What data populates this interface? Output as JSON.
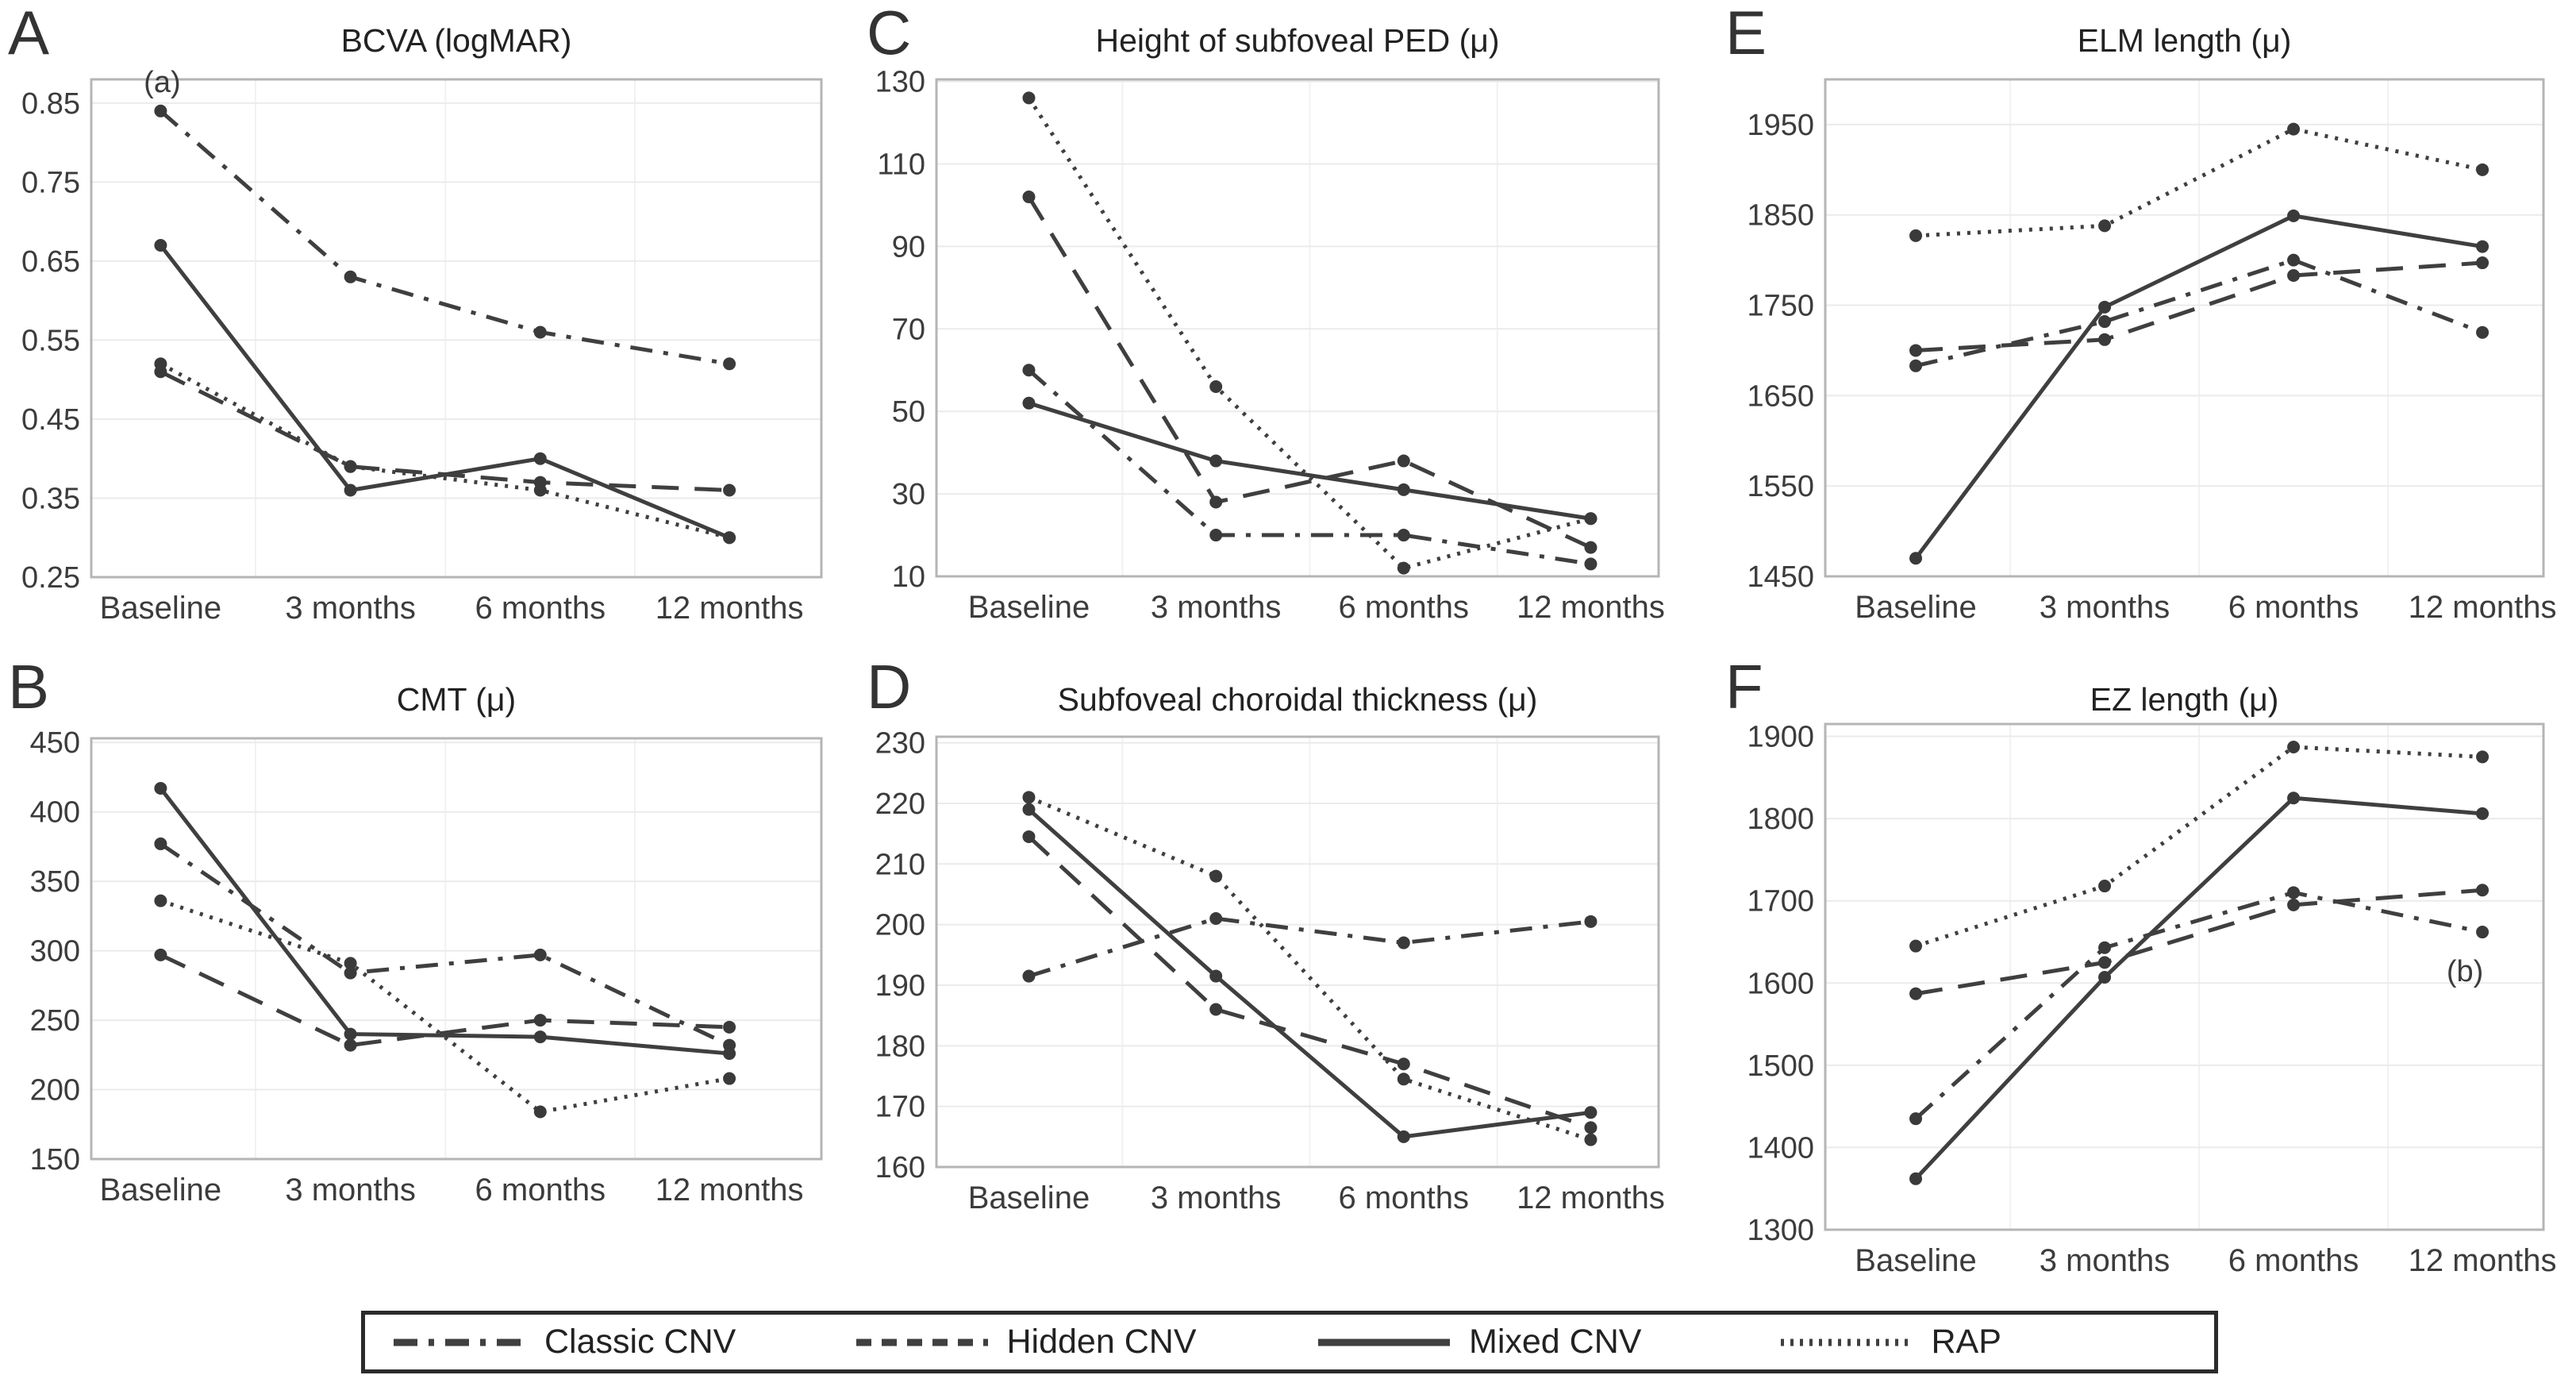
{
  "page": {
    "background": "#ffffff"
  },
  "colors": {
    "series_line": "#3f3f3f",
    "marker": "#3a3a3a",
    "grid": "#ebebeb",
    "plot_border": "#b5b5b5",
    "text": "#2e2e2e"
  },
  "legend": {
    "items": [
      {
        "label": "Classic CNV",
        "style": "dashdot"
      },
      {
        "label": "Hidden CNV",
        "style": "dashed"
      },
      {
        "label": "Mixed CNV",
        "style": "solid"
      },
      {
        "label": "RAP",
        "style": "dotted"
      }
    ]
  },
  "chart_data": [
    {
      "panel": "A",
      "type": "line",
      "title": "BCVA (logMAR)",
      "categories": [
        "Baseline",
        "3 months",
        "6 months",
        "12 months"
      ],
      "ylim": [
        0.25,
        0.88
      ],
      "yticks": [
        0.85,
        0.75,
        0.65,
        0.55,
        0.45,
        0.35,
        0.25
      ],
      "ytick_decimals": 2,
      "grid": true,
      "series": [
        {
          "name": "Classic CNV",
          "style": "dashdot",
          "values": [
            0.84,
            0.63,
            0.56,
            0.52
          ]
        },
        {
          "name": "Hidden CNV",
          "style": "dashed",
          "values": [
            0.51,
            0.39,
            0.37,
            0.36
          ]
        },
        {
          "name": "Mixed CNV",
          "style": "solid",
          "values": [
            0.67,
            0.36,
            0.4,
            0.3
          ]
        },
        {
          "name": "RAP",
          "style": "dotted",
          "values": [
            0.52,
            0.39,
            0.36,
            0.3
          ]
        }
      ],
      "annotations": [
        {
          "text": "(a)",
          "series": 0,
          "point": 0,
          "position": "above"
        }
      ]
    },
    {
      "panel": "B",
      "type": "line",
      "title": "CMT (μ)",
      "categories": [
        "Baseline",
        "3 months",
        "6 months",
        "12 months"
      ],
      "ylim": [
        150,
        453
      ],
      "yticks": [
        450,
        400,
        350,
        300,
        250,
        200,
        150
      ],
      "ytick_decimals": 0,
      "grid": true,
      "series": [
        {
          "name": "Classic CNV",
          "style": "dashdot",
          "values": [
            377,
            284,
            297,
            232
          ]
        },
        {
          "name": "Hidden CNV",
          "style": "dashed",
          "values": [
            297,
            232,
            250,
            245
          ]
        },
        {
          "name": "Mixed CNV",
          "style": "solid",
          "values": [
            417,
            240,
            238,
            226
          ]
        },
        {
          "name": "RAP",
          "style": "dotted",
          "values": [
            336,
            291,
            184,
            208
          ]
        }
      ],
      "annotations": []
    },
    {
      "panel": "C",
      "type": "line",
      "title": "Height of subfoveal PED (μ)",
      "categories": [
        "Baseline",
        "3 months",
        "6 months",
        "12 months"
      ],
      "ylim": [
        10,
        130.5
      ],
      "yticks": [
        130,
        110,
        90,
        70,
        50,
        30,
        10
      ],
      "ytick_decimals": 0,
      "grid": true,
      "series": [
        {
          "name": "Classic CNV",
          "style": "dashdot",
          "values": [
            60,
            20,
            20,
            13
          ]
        },
        {
          "name": "Hidden CNV",
          "style": "dashed",
          "values": [
            102,
            28,
            38,
            17
          ]
        },
        {
          "name": "Mixed CNV",
          "style": "solid",
          "values": [
            52,
            38,
            31,
            24
          ]
        },
        {
          "name": "RAP",
          "style": "dotted",
          "values": [
            126,
            56,
            12,
            24
          ]
        }
      ],
      "annotations": []
    },
    {
      "panel": "D",
      "type": "line",
      "title": "Subfoveal choroidal thickness (μ)",
      "categories": [
        "Baseline",
        "3 months",
        "6 months",
        "12 months"
      ],
      "ylim": [
        160,
        231
      ],
      "yticks": [
        230,
        220,
        210,
        200,
        190,
        180,
        170,
        160
      ],
      "ytick_decimals": 0,
      "grid": true,
      "series": [
        {
          "name": "Classic CNV",
          "style": "dashdot",
          "values": [
            191.5,
            201,
            197,
            200.5
          ]
        },
        {
          "name": "Hidden CNV",
          "style": "dashed",
          "values": [
            214.5,
            186,
            177,
            166.5
          ]
        },
        {
          "name": "Mixed CNV",
          "style": "solid",
          "values": [
            219,
            191.5,
            165,
            169
          ]
        },
        {
          "name": "RAP",
          "style": "dotted",
          "values": [
            221,
            208,
            174.5,
            164.5
          ]
        }
      ],
      "annotations": []
    },
    {
      "panel": "E",
      "type": "line",
      "title": "ELM length (μ)",
      "categories": [
        "Baseline",
        "3 months",
        "6 months",
        "12 months"
      ],
      "ylim": [
        1450,
        2000
      ],
      "yticks": [
        1950,
        1850,
        1750,
        1650,
        1550,
        1450
      ],
      "ytick_decimals": 0,
      "grid": true,
      "series": [
        {
          "name": "Classic CNV",
          "style": "dashdot",
          "values": [
            1683,
            1732,
            1800,
            1720
          ]
        },
        {
          "name": "Hidden CNV",
          "style": "dashed",
          "values": [
            1700,
            1712,
            1783,
            1797
          ]
        },
        {
          "name": "Mixed CNV",
          "style": "solid",
          "values": [
            1470,
            1748,
            1849,
            1815
          ]
        },
        {
          "name": "RAP",
          "style": "dotted",
          "values": [
            1827,
            1838,
            1945,
            1900
          ]
        }
      ],
      "annotations": []
    },
    {
      "panel": "F",
      "type": "line",
      "title": "EZ length (μ)",
      "categories": [
        "Baseline",
        "3 months",
        "6 months",
        "12 months"
      ],
      "ylim": [
        1300,
        1915
      ],
      "yticks": [
        1900,
        1800,
        1700,
        1600,
        1500,
        1400,
        1300
      ],
      "ytick_decimals": 0,
      "grid": true,
      "series": [
        {
          "name": "Classic CNV",
          "style": "dashdot",
          "values": [
            1435,
            1643,
            1710,
            1662
          ]
        },
        {
          "name": "Hidden CNV",
          "style": "dashed",
          "values": [
            1587,
            1625,
            1695,
            1713
          ]
        },
        {
          "name": "Mixed CNV",
          "style": "solid",
          "values": [
            1362,
            1607,
            1825,
            1806
          ]
        },
        {
          "name": "RAP",
          "style": "dotted",
          "values": [
            1645,
            1718,
            1887,
            1875
          ]
        }
      ],
      "annotations": [
        {
          "text": "(b)",
          "series": 0,
          "point": 3,
          "position": "below"
        }
      ]
    }
  ]
}
